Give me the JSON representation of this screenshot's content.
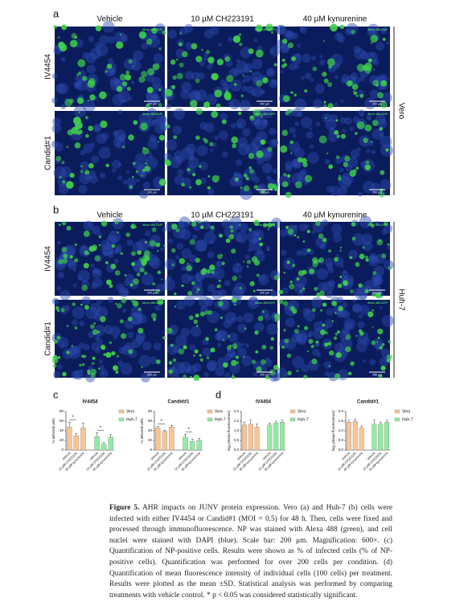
{
  "figure": {
    "panels": [
      {
        "label": "a",
        "columns": [
          "Vehicle",
          "10 µM CH223191",
          "40 µM kynurenine"
        ],
        "rows": [
          "IV4454",
          "Candid#1"
        ],
        "cell_line": "Vero"
      },
      {
        "label": "b",
        "columns": [
          "Vehicle",
          "10 µM CH223191",
          "40 µM kynurenine"
        ],
        "rows": [
          "IV4454",
          "Candid#1"
        ],
        "cell_line": "Huh-7"
      }
    ],
    "image_stain": "Alexa 488-DAPI",
    "scale_bar": "200 µm",
    "chart_panel_labels": [
      "c",
      "d"
    ]
  },
  "chart_data": [
    {
      "type": "bar",
      "title": "IV4454",
      "ylabel": "% infected cells",
      "categories": [
        "Vehicle",
        "10 µM CH223191",
        "40 µM kynurenine"
      ],
      "series": [
        {
          "name": "Vero",
          "color": "#f7c594",
          "values": [
            48,
            30,
            46
          ],
          "errors": [
            10,
            4,
            10
          ]
        },
        {
          "name": "Huh-7",
          "color": "#92eaa4",
          "values": [
            28,
            12,
            27
          ],
          "errors": [
            8,
            4,
            5
          ]
        }
      ],
      "ylim": [
        0,
        80
      ],
      "yticks": [
        0,
        20,
        40,
        60,
        80
      ],
      "annotations": [
        {
          "label": "*",
          "series": 0,
          "between": [
            0,
            1
          ]
        },
        {
          "label": "*",
          "series": 1,
          "between": [
            0,
            1
          ]
        }
      ]
    },
    {
      "type": "bar",
      "title": "Candid#1",
      "ylabel": "% infected cells",
      "categories": [
        "Vehicle",
        "10 µM CH223191",
        "40 µM kynurenine"
      ],
      "series": [
        {
          "name": "Vero",
          "color": "#f7c594",
          "values": [
            46,
            39,
            48
          ],
          "errors": [
            3,
            2,
            3
          ]
        },
        {
          "name": "Huh-7",
          "color": "#92eaa4",
          "values": [
            27,
            18,
            20
          ],
          "errors": [
            6,
            5,
            4
          ]
        }
      ],
      "ylim": [
        0,
        80
      ],
      "yticks": [
        0,
        20,
        40,
        60,
        80
      ],
      "annotations": [
        {
          "label": "*",
          "series": 0,
          "between": [
            0,
            1
          ]
        },
        {
          "label": "*",
          "series": 1,
          "between": [
            0,
            1
          ]
        }
      ]
    },
    {
      "type": "bar",
      "title": "IV4454",
      "ylabel": "log₁₀(mean fluorescence)",
      "categories": [
        "Vehicle",
        "10 µM CH223191",
        "40 µM kynurenine"
      ],
      "series": [
        {
          "name": "Vero",
          "color": "#f7c594",
          "values": [
            1.3,
            1.35,
            1.2
          ],
          "errors": [
            0.15,
            0.2,
            0.15
          ]
        },
        {
          "name": "Huh-7",
          "color": "#92eaa4",
          "values": [
            1.3,
            1.4,
            1.45
          ],
          "errors": [
            0.1,
            0.1,
            0.1
          ]
        }
      ],
      "ylim": [
        0,
        2
      ],
      "yticks": [
        {
          "value": 0,
          "label": "0.0"
        },
        0.5,
        {
          "value": 1,
          "label": "1.0"
        },
        1.5,
        {
          "value": 2,
          "label": "2.0"
        }
      ]
    },
    {
      "type": "bar",
      "title": "Candid#1",
      "ylabel": "log₁₀(mean fluorescence)",
      "categories": [
        "Vehicle",
        "10 µM CH223191",
        "40 µM kynurenine"
      ],
      "series": [
        {
          "name": "Vero",
          "color": "#f7c594",
          "values": [
            1.45,
            1.5,
            1.15
          ],
          "errors": [
            0.1,
            0.1,
            0.1
          ]
        },
        {
          "name": "Huh-7",
          "color": "#92eaa4",
          "values": [
            1.35,
            1.35,
            1.45
          ],
          "errors": [
            0.2,
            0.1,
            0.1
          ]
        }
      ],
      "ylim": [
        0,
        2
      ],
      "yticks": [
        {
          "value": 0,
          "label": "0.0"
        },
        0.5,
        {
          "value": 1,
          "label": "1.0"
        },
        1.5,
        {
          "value": 2,
          "label": "2.0"
        }
      ]
    }
  ],
  "caption": {
    "label": "Figure 5.",
    "text": "AHR impacts on JUNV protein expression. Vero (a) and Huh-7 (b) cells were infected with either IV4454 or Candid#1 (MOI = 0.5) for 48 h. Then, cells were fixed and processed through immunofluorescence. NP was stained with Alexa 488 (green), and cell nuclei were stained with DAPI (blue). Scale bar: 200 μm. Magnification: 600×. (c) Quantification of NP-positive cells. Results were shown as % of infected cells (% of NP-positive cells). Quantification was performed for over 200 cells per condition. (d) Quantification of mean fluorescence intensity of individual cells (100 cells) per treatment. Results were plotted as the mean ±SD. Statistical analysis was performed by comparing treatments with vehicle control. * p < 0.05 was considered statistically significant."
  }
}
